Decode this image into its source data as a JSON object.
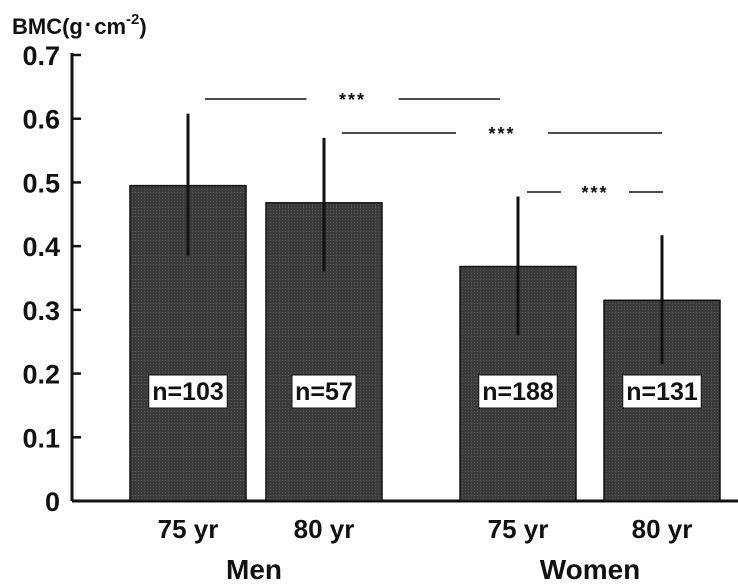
{
  "chart_data": {
    "type": "bar",
    "ylabel": "BMC(g·cm⁻²)",
    "ylabel_main": "BMC(g",
    "ylabel_dot": "·",
    "ylabel_unit": "cm",
    "ylabel_exp": "-2",
    "ylabel_close": ")",
    "ylim": [
      0,
      0.7
    ],
    "yticks": [
      "0",
      "0.1",
      "0.2",
      "0.3",
      "0.4",
      "0.5",
      "0.6",
      "0.7"
    ],
    "groups": [
      "Men",
      "Women"
    ],
    "categories": [
      "75 yr",
      "80 yr",
      "75 yr",
      "80 yr"
    ],
    "values": [
      0.495,
      0.468,
      0.368,
      0.315
    ],
    "error_upper": [
      0.608,
      0.57,
      0.478,
      0.417
    ],
    "error_lower": [
      0.385,
      0.36,
      0.26,
      0.215
    ],
    "n_labels": [
      "n=103",
      "n=57",
      "n=188",
      "n=131"
    ],
    "significance": [
      {
        "from": 0,
        "to": 2,
        "label": "***"
      },
      {
        "from": 1,
        "to": 3,
        "label": "***"
      },
      {
        "from": 2,
        "to": 3,
        "label": "***"
      }
    ],
    "bar_color": "#3a3a3a",
    "grid": false,
    "legend": "none"
  }
}
